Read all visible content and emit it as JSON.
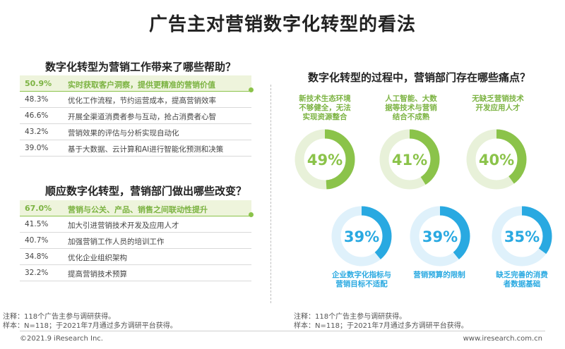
{
  "title": "广告主对营销数字化转型的看法",
  "left": {
    "q1_title": "数字化转型为营销工作带来了哪些帮助？",
    "q1_items": [
      {
        "pct": "50.9%",
        "text": "实时获取客户洞察，提供更精准的营销价值"
      },
      {
        "pct": "48.3%",
        "text": "优化工作流程，节约运营成本，提高营销效率"
      },
      {
        "pct": "46.6%",
        "text": "开展全渠道消费者参与互动，抢占消费者心智"
      },
      {
        "pct": "43.2%",
        "text": "营销效果的评估与分析实现自动化"
      },
      {
        "pct": "39.0%",
        "text": "基于大数据、云计算和AI进行智能化预测和决策"
      }
    ],
    "q2_title": "顺应数字化转型，营销部门做出哪些改变？",
    "q2_items": [
      {
        "pct": "67.0%",
        "text": "营销与公关、产品、销售之间联动性提升"
      },
      {
        "pct": "41.5%",
        "text": "加大引进营销技术开发及应用人才"
      },
      {
        "pct": "40.7%",
        "text": "加强营销工作人员的培训工作"
      },
      {
        "pct": "34.8%",
        "text": "优化企业组织架构"
      },
      {
        "pct": "32.2%",
        "text": "提高营销技术预算"
      }
    ],
    "note1": "注释：118个广告主参与调研获得。",
    "note2": "样本：N=118；于2021年7月通过多方调研平台获得。"
  },
  "right": {
    "q_title": "数字化转型的过程中，营销部门存在哪些痛点？",
    "note1": "注释：118个广告主参与调研获得。",
    "note2": "样本：N=118；于2021年7月通过多方调研平台获得。"
  },
  "chart_data": {
    "type": "pie",
    "title": "数字化转型的过程中，营销部门存在哪些痛点？",
    "categories": [
      "新技术生态环境不够健全，无法实现资源整合",
      "人工智能、大数据等技术与营销结合不成熟",
      "无缺乏营销技术开发应用人才",
      "企业数字化指标与营销目标不适配",
      "营销预算的限制",
      "缺乏完善的消费者数据基础"
    ],
    "values": [
      49,
      41,
      40,
      39,
      39,
      35
    ],
    "value_labels": [
      "49%",
      "41%",
      "40%",
      "39%",
      "39%",
      "35%"
    ],
    "label_lines": [
      [
        "新技术生态环境",
        "不够健全，无法",
        "实现资源整合"
      ],
      [
        "人工智能、大数",
        "据等技术与营销",
        "结合不成熟"
      ],
      [
        "无缺乏营销技术",
        "开发应用人才"
      ],
      [
        "企业数字化指标与",
        "营销目标不适配"
      ],
      [
        "营销预算的限制"
      ],
      [
        "缺乏完善的消费",
        "者数据基础"
      ]
    ],
    "colors": [
      "#8bc34a",
      "#8bc34a",
      "#8bc34a",
      "#29a9e1",
      "#29a9e1",
      "#29a9e1"
    ],
    "track_colors": [
      "#e8f1d9",
      "#e8f1d9",
      "#e8f1d9",
      "#dff1fb",
      "#dff1fb",
      "#dff1fb"
    ]
  },
  "footer": {
    "copyright": "©2021.9 iResearch Inc.",
    "site": "www.iresearch.com.cn"
  }
}
